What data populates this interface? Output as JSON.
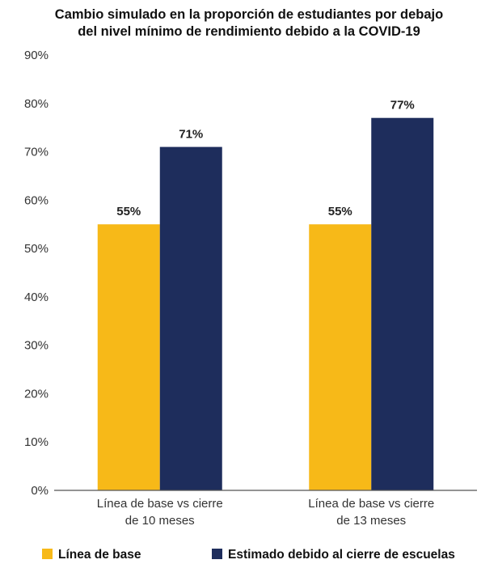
{
  "chart_data": {
    "type": "bar",
    "title": "Cambio simulado en la proporción de estudiantes por debajo del nivel mínimo de rendimiento debido a la COVID-19",
    "title_lines": [
      "Cambio simulado en la proporción de estudiantes por debajo",
      "del nivel mínimo de rendimiento debido a la COVID-19"
    ],
    "categories": [
      [
        "Línea de base vs cierre",
        "de 10 meses"
      ],
      [
        "Línea de base vs cierre",
        "de 13 meses"
      ]
    ],
    "series": [
      {
        "name": "Línea de base",
        "values": [
          55,
          55
        ],
        "labels": [
          "55%",
          "55%"
        ],
        "color": "#F7B918"
      },
      {
        "name": "Estimado debido al cierre de escuelas",
        "values": [
          71,
          77
        ],
        "labels": [
          "71%",
          "77%"
        ],
        "color": "#1E2D5C"
      }
    ],
    "ylim": [
      0,
      90
    ],
    "yticks": [
      {
        "value": 0,
        "label": "0%"
      },
      {
        "value": 10,
        "label": "10%"
      },
      {
        "value": 20,
        "label": "20%"
      },
      {
        "value": 30,
        "label": "30%"
      },
      {
        "value": 40,
        "label": "40%"
      },
      {
        "value": 50,
        "label": "50%"
      },
      {
        "value": 60,
        "label": "60%"
      },
      {
        "value": 70,
        "label": "70%"
      },
      {
        "value": 80,
        "label": "80%"
      },
      {
        "value": 90,
        "label": "90%"
      }
    ],
    "xlabel": "",
    "ylabel": "",
    "grid": false,
    "legend_position": "bottom"
  }
}
